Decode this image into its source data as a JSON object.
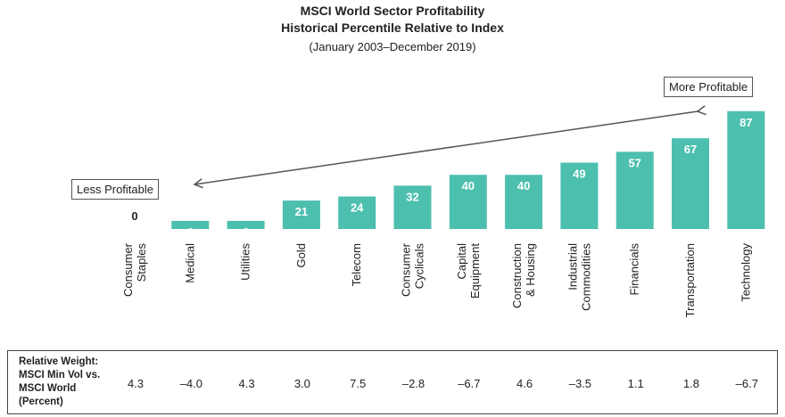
{
  "header": {
    "title_line1": "MSCI World Sector Profitability",
    "title_line2": "Historical Percentile Relative to Index",
    "subtitle": "(January 2003–December 2019)"
  },
  "annotations": {
    "less": "Less Profitable",
    "more": "More Profitable"
  },
  "table": {
    "header_lines": [
      "Relative Weight:",
      "MSCI Min Vol vs.",
      "MSCI World",
      "(Percent)"
    ],
    "values": [
      "4.3",
      "–4.0",
      "4.3",
      "3.0",
      "7.5",
      "–2.8",
      "–6.7",
      "4.6",
      "–3.5",
      "1.1",
      "1.8",
      "–6.7"
    ]
  },
  "colors": {
    "bar": "#4dbfae",
    "arrow": "#555555"
  },
  "chart_data": {
    "type": "bar",
    "title": "MSCI World Sector Profitability",
    "subtitle": "Historical Percentile Relative to Index",
    "categories": [
      [
        "Consumer",
        "Staples"
      ],
      [
        "Medical"
      ],
      [
        "Utilities"
      ],
      [
        "Gold"
      ],
      [
        "Telecom"
      ],
      [
        "Consumer",
        "Cyclicals"
      ],
      [
        "Capital",
        "Equipment"
      ],
      [
        "Construction",
        "& Housing"
      ],
      [
        "Industrial",
        "Commodities"
      ],
      [
        "Financials"
      ],
      [
        "Transportation"
      ],
      [
        "Technology"
      ]
    ],
    "values": [
      0,
      6,
      6,
      21,
      24,
      32,
      40,
      40,
      49,
      57,
      67,
      87
    ],
    "ylim": [
      0,
      100
    ],
    "grid": false,
    "xlabel": "",
    "ylabel": ""
  }
}
